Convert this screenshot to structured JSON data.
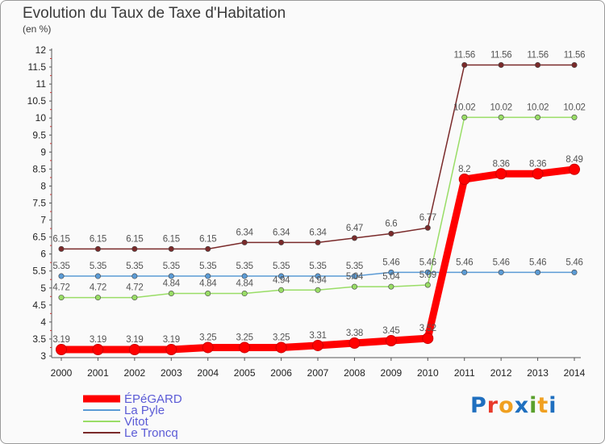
{
  "title": "Evolution du Taux de Taxe d'Habitation",
  "subtitle": "(en %)",
  "logo": {
    "text": "Proxiti",
    "colors": [
      "#1f6fbf",
      "#e83a2a",
      "#f0a020",
      "#1f6fbf",
      "#5aa02c",
      "#f0a020",
      "#1f6fbf"
    ]
  },
  "chart_data": {
    "type": "line",
    "x": [
      2000,
      2001,
      2002,
      2003,
      2004,
      2005,
      2006,
      2007,
      2008,
      2009,
      2010,
      2011,
      2012,
      2013,
      2014
    ],
    "ylim": [
      3,
      12
    ],
    "yticks": [
      "3",
      "3.5",
      "4",
      "4.5",
      "5",
      "5.5",
      "6",
      "6.5",
      "7",
      "7.5",
      "8",
      "8.5",
      "9",
      "9.5",
      "10",
      "10.5",
      "11",
      "11.5",
      "12"
    ],
    "grid": false,
    "legend_position": "bottom-left",
    "series": [
      {
        "name": "ÉPéGARD",
        "color": "#ff0000",
        "values": [
          3.19,
          3.19,
          3.19,
          3.19,
          3.25,
          3.25,
          3.25,
          3.31,
          3.38,
          3.45,
          3.52,
          8.2,
          8.36,
          8.36,
          8.49
        ],
        "labels": [
          "3.19",
          "3.19",
          "3.19",
          "3.19",
          "3.25",
          "3.25",
          "3.25",
          "3.31",
          "3.38",
          "3.45",
          "3.52",
          "8.2",
          "8.36",
          "8.36",
          "8.49"
        ]
      },
      {
        "name": "La Pyle",
        "color": "#5b9bd5",
        "values": [
          5.35,
          5.35,
          5.35,
          5.35,
          5.35,
          5.35,
          5.35,
          5.35,
          5.35,
          5.46,
          5.46,
          5.46,
          5.46,
          5.46,
          5.46
        ],
        "labels": [
          "5.35",
          "5.35",
          "5.35",
          "5.35",
          "5.35",
          "5.35",
          "5.35",
          "5.35",
          "5.35",
          "5.46",
          "5.46",
          "5.46",
          "5.46",
          "5.46",
          "5.46"
        ]
      },
      {
        "name": "Vitot",
        "color": "#99dd66",
        "values": [
          4.72,
          4.72,
          4.72,
          4.84,
          4.84,
          4.84,
          4.94,
          4.94,
          5.04,
          5.04,
          5.09,
          10.02,
          10.02,
          10.02,
          10.02
        ],
        "labels": [
          "4.72",
          "4.72",
          "4.72",
          "4.84",
          "4.84",
          "4.84",
          "4.94",
          "4.94",
          "5.04",
          "5.04",
          "5.09",
          "10.02",
          "10.02",
          "10.02",
          "10.02"
        ]
      },
      {
        "name": "Le Troncq",
        "color": "#7a2a2a",
        "values": [
          6.15,
          6.15,
          6.15,
          6.15,
          6.15,
          6.34,
          6.34,
          6.34,
          6.47,
          6.6,
          6.77,
          11.56,
          11.56,
          11.56,
          11.56
        ],
        "labels": [
          "6.15",
          "6.15",
          "6.15",
          "6.15",
          "6.15",
          "6.34",
          "6.34",
          "6.34",
          "6.47",
          "6.6",
          "6.77",
          "11.56",
          "11.56",
          "11.56",
          "11.56"
        ]
      }
    ]
  }
}
